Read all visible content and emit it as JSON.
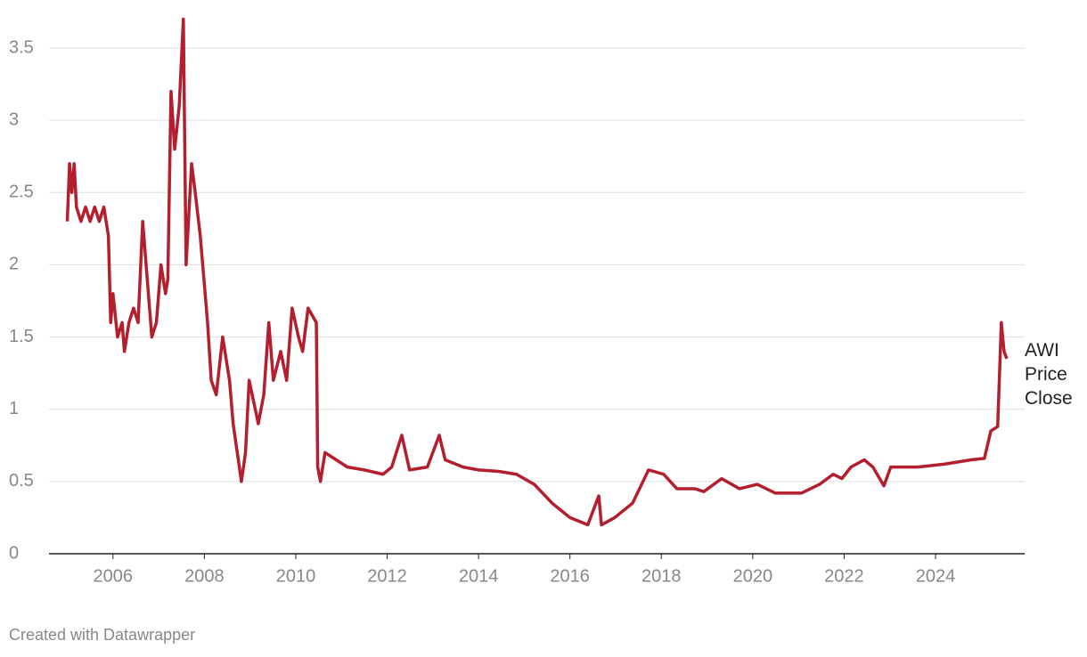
{
  "chart_data": {
    "type": "line",
    "x": [
      2005.0,
      2005.05,
      2005.1,
      2005.15,
      2005.2,
      2005.3,
      2005.4,
      2005.5,
      2005.6,
      2005.7,
      2005.8,
      2005.9,
      2005.95,
      2006.0,
      2006.1,
      2006.2,
      2006.25,
      2006.35,
      2006.45,
      2006.55,
      2006.65,
      2006.75,
      2006.85,
      2006.95,
      2007.05,
      2007.15,
      2007.2,
      2007.27,
      2007.35,
      2007.45,
      2007.54,
      2007.6,
      2007.72,
      2007.8,
      2007.91,
      2008.07,
      2008.15,
      2008.26,
      2008.4,
      2008.55,
      2008.63,
      2008.81,
      2008.9,
      2008.98,
      2009.18,
      2009.3,
      2009.41,
      2009.51,
      2009.67,
      2009.8,
      2009.92,
      2010.06,
      2010.15,
      2010.27,
      2010.45,
      2010.48,
      2010.54,
      2010.64,
      2011.13,
      2011.5,
      2011.91,
      2012.1,
      2012.32,
      2012.49,
      2012.88,
      2013.14,
      2013.27,
      2013.66,
      2014.0,
      2014.44,
      2014.83,
      2015.22,
      2015.61,
      2016.0,
      2016.39,
      2016.63,
      2016.69,
      2016.98,
      2017.37,
      2017.72,
      2018.05,
      2018.34,
      2018.73,
      2018.93,
      2019.32,
      2019.71,
      2020.1,
      2020.49,
      2021.07,
      2021.46,
      2021.76,
      2021.95,
      2022.15,
      2022.44,
      2022.63,
      2022.87,
      2023.02,
      2023.61,
      2024.19,
      2024.78,
      2025.07,
      2025.21,
      2025.36,
      2025.44,
      2025.5,
      2025.56
    ],
    "series": [
      {
        "name": "AWI Price Close",
        "color": "#b31f2e",
        "values": [
          2.3,
          2.7,
          2.5,
          2.7,
          2.4,
          2.3,
          2.4,
          2.3,
          2.4,
          2.3,
          2.4,
          2.2,
          1.6,
          1.8,
          1.5,
          1.6,
          1.4,
          1.6,
          1.7,
          1.6,
          2.3,
          1.9,
          1.5,
          1.6,
          2.0,
          1.8,
          1.9,
          3.2,
          2.8,
          3.1,
          3.7,
          2.0,
          2.7,
          2.5,
          2.2,
          1.6,
          1.2,
          1.1,
          1.5,
          1.2,
          0.9,
          0.5,
          0.7,
          1.2,
          0.9,
          1.1,
          1.6,
          1.2,
          1.4,
          1.2,
          1.7,
          1.5,
          1.4,
          1.7,
          1.6,
          0.6,
          0.5,
          0.7,
          0.6,
          0.58,
          0.55,
          0.6,
          0.82,
          0.58,
          0.6,
          0.82,
          0.65,
          0.6,
          0.58,
          0.57,
          0.55,
          0.48,
          0.35,
          0.25,
          0.2,
          0.4,
          0.2,
          0.25,
          0.35,
          0.58,
          0.55,
          0.45,
          0.45,
          0.43,
          0.52,
          0.45,
          0.48,
          0.42,
          0.42,
          0.48,
          0.55,
          0.52,
          0.6,
          0.65,
          0.6,
          0.47,
          0.6,
          0.6,
          0.62,
          0.65,
          0.66,
          0.85,
          0.88,
          1.6,
          1.4,
          1.35
        ]
      }
    ],
    "xlim": [
      2004.6,
      2025.95
    ],
    "xticks": [
      2006,
      2008,
      2010,
      2012,
      2014,
      2016,
      2018,
      2020,
      2022,
      2024
    ],
    "ylim": [
      0,
      3.5
    ],
    "yticks": [
      0,
      0.5,
      1,
      1.5,
      2,
      2.5,
      3,
      3.5
    ],
    "grid": true,
    "credit": "Created with Datawrapper"
  }
}
